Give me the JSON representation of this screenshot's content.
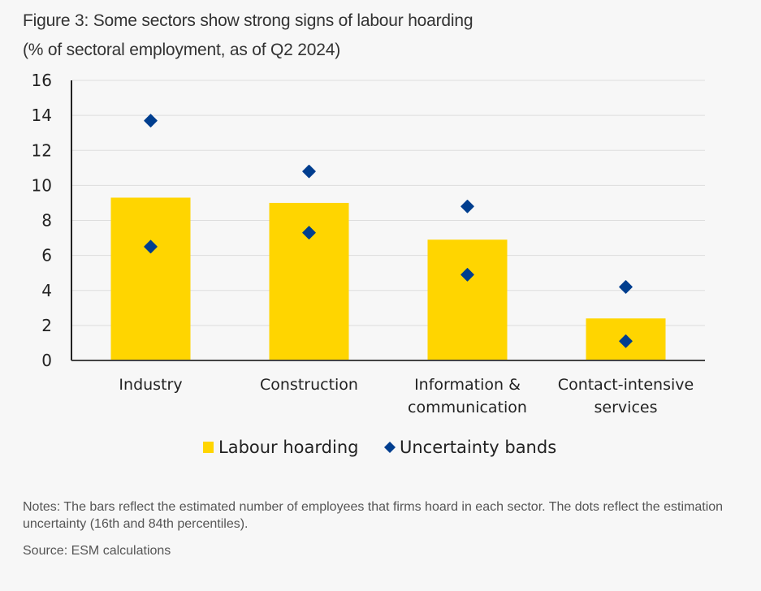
{
  "title_line1": "Figure 3: Some sectors show strong signs of labour hoarding",
  "title_line2": "(% of sectoral employment, as of Q2 2024)",
  "notes": "Notes: The bars reflect the estimated number of employees that firms hoard in each sector. The dots reflect the estimation uncertainty (16th and 84th percentiles).",
  "source": "Source: ESM calculations",
  "colors": {
    "bar": "#FFD500",
    "dot": "#003E8F",
    "grid": "#dddddd",
    "axis": "#222222"
  },
  "chart_data": {
    "type": "bar",
    "title": "Figure 3: Some sectors show strong signs of labour hoarding",
    "subtitle": "(% of sectoral employment, as of Q2 2024)",
    "xlabel": "",
    "ylabel": "",
    "ylim": [
      0,
      16
    ],
    "yticks": [
      "0",
      "2",
      "4",
      "6",
      "8",
      "10",
      "12",
      "14",
      "16"
    ],
    "grid": true,
    "legend_position": "bottom",
    "categories": [
      [
        "Industry"
      ],
      [
        "Construction"
      ],
      [
        "Information &",
        "communication"
      ],
      [
        "Contact-intensive",
        "services"
      ]
    ],
    "series": [
      {
        "name": "Labour hoarding",
        "kind": "bar",
        "values": [
          9.3,
          9.0,
          6.9,
          2.4
        ]
      },
      {
        "name": "Uncertainty bands",
        "kind": "scatter-diamond",
        "upper": [
          13.7,
          10.8,
          8.8,
          4.2
        ],
        "lower": [
          6.5,
          7.3,
          4.9,
          1.1
        ]
      }
    ]
  }
}
